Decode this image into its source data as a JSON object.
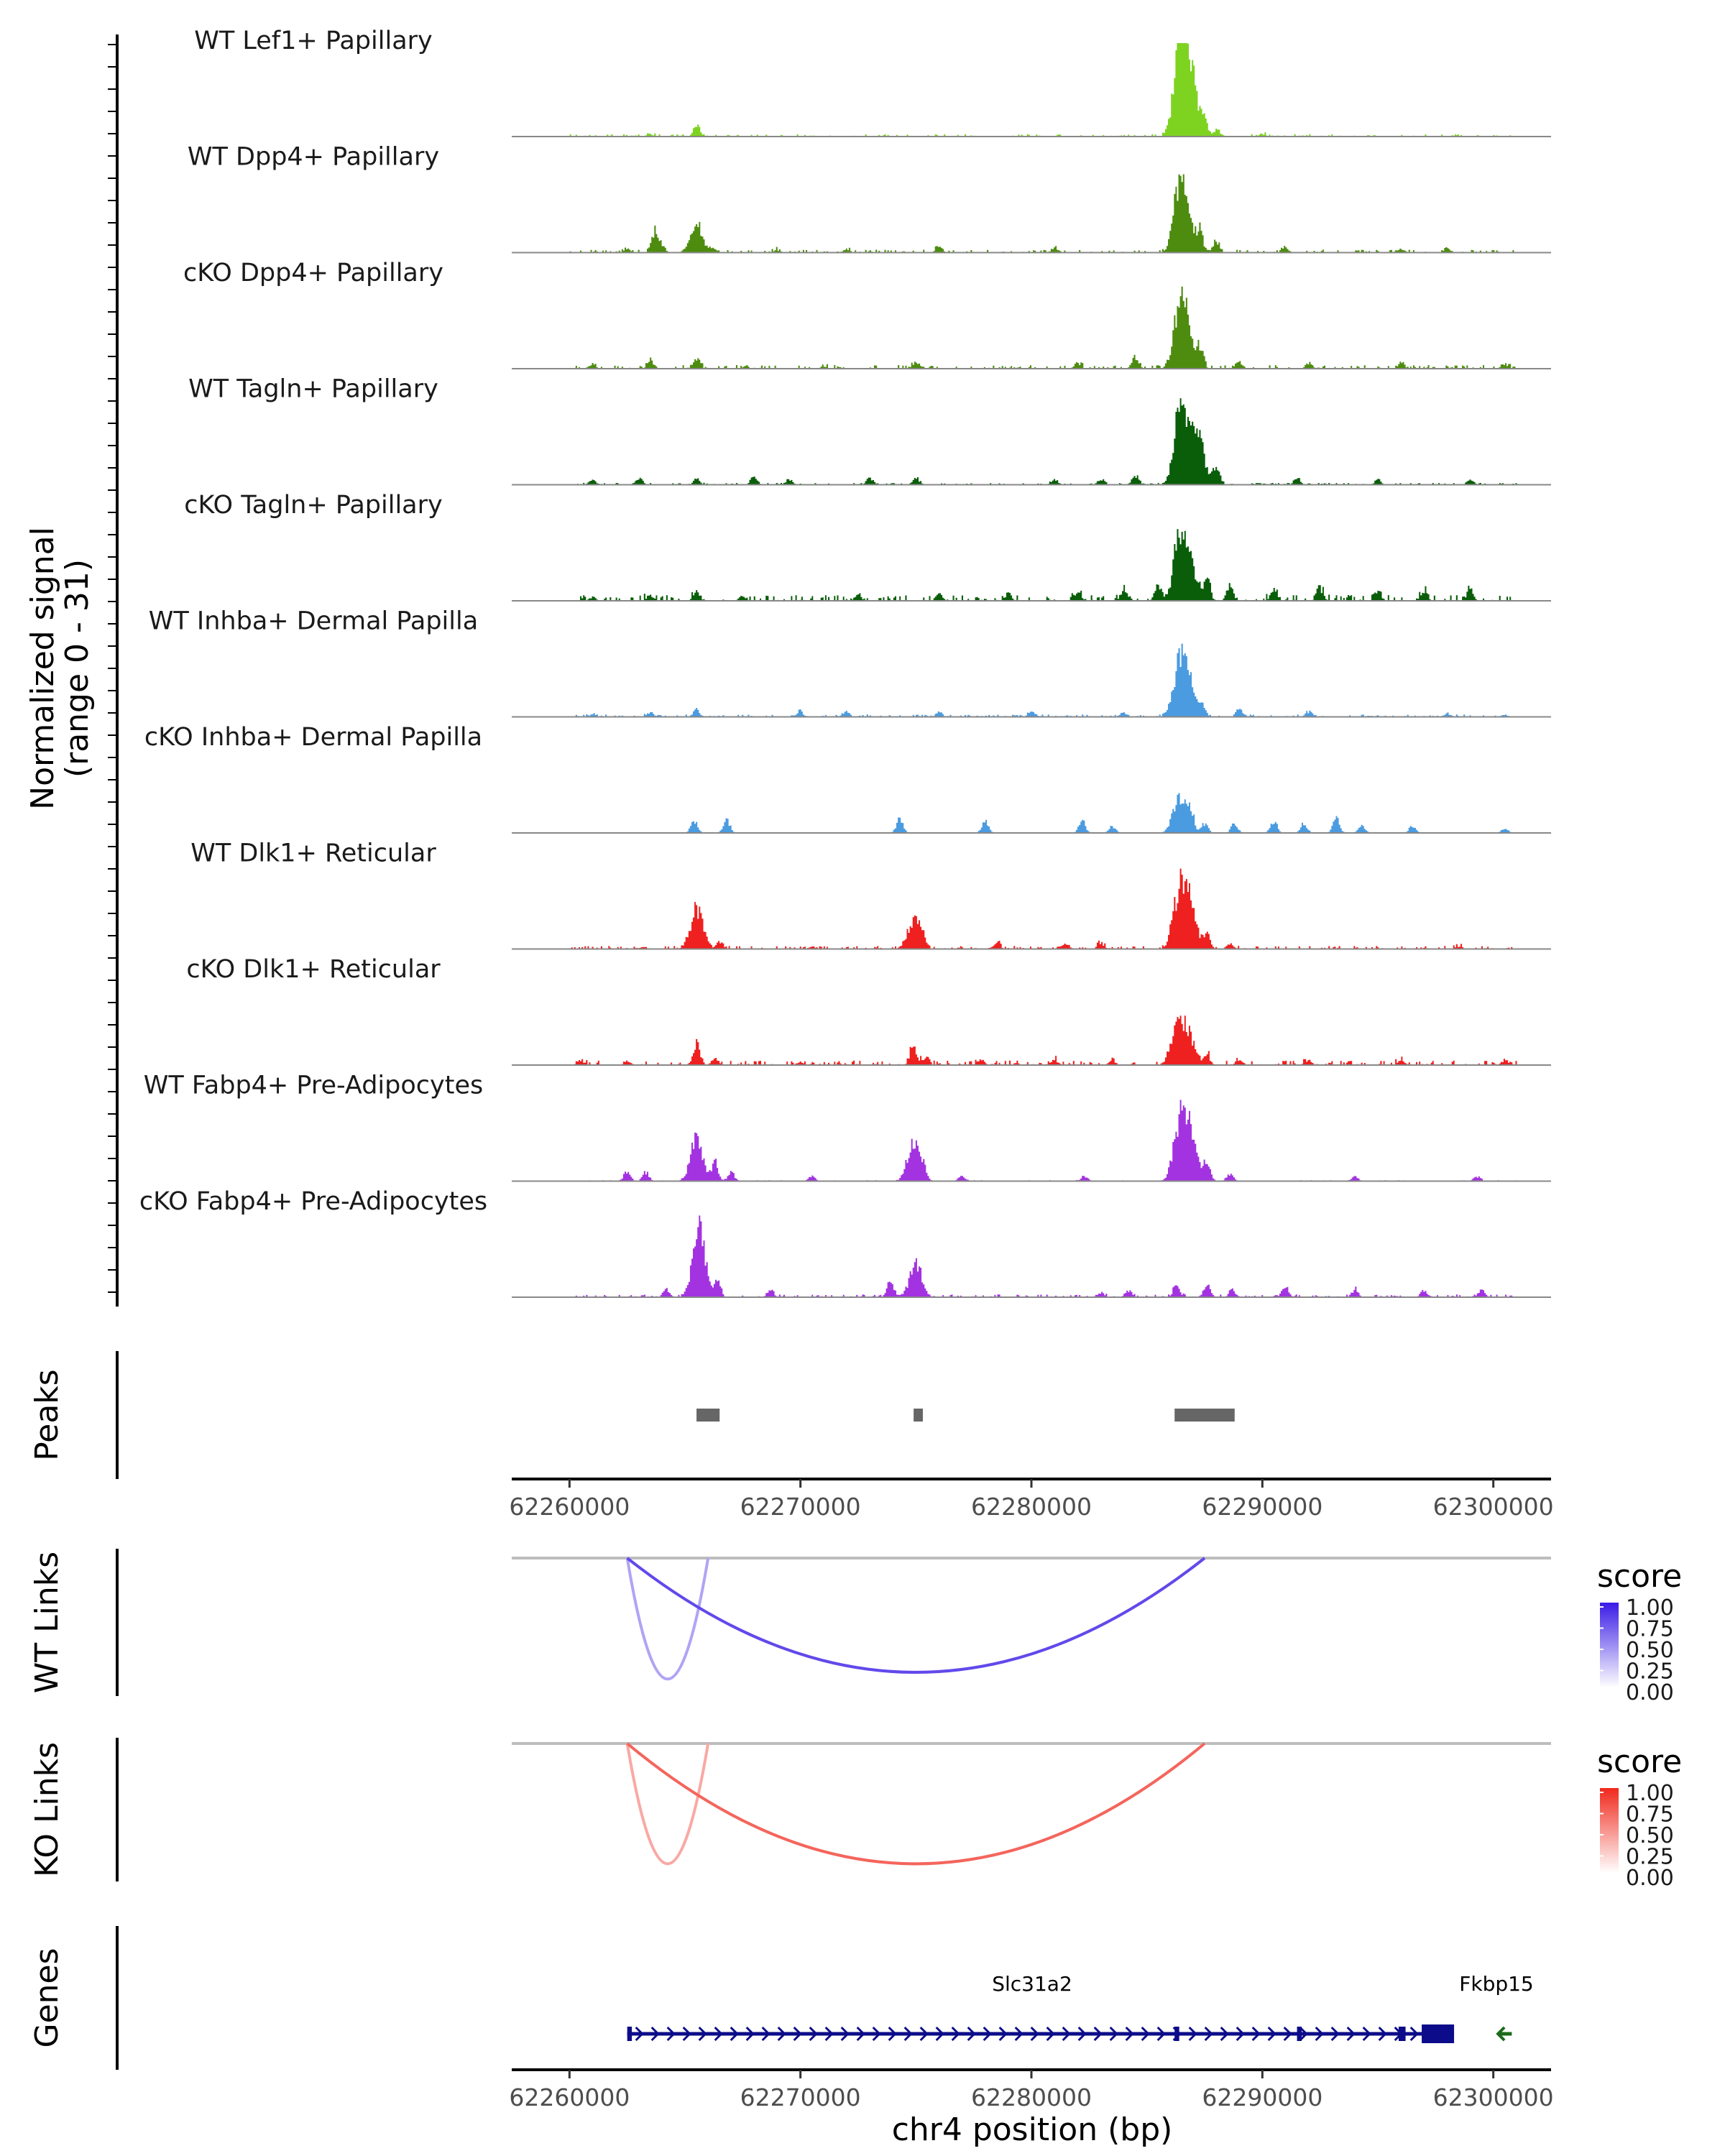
{
  "chart_data": {
    "type": "genome-coverage",
    "region": {
      "chrom": "chr4",
      "start": 62257500,
      "end": 62302500
    },
    "xlabel": "chr4 position (bp)",
    "x_ticks": [
      62260000,
      62270000,
      62280000,
      62290000,
      62300000
    ],
    "x_tick_labels": [
      "62260000",
      "62270000",
      "62280000",
      "62290000",
      "62300000"
    ],
    "coverage_ylabel": [
      "Normalized signal",
      "(range 0 - 31)"
    ],
    "y_range": [
      0,
      31
    ],
    "tracks": [
      {
        "name": "WT Lef1+ Papillary",
        "color": "#7ED321",
        "peaks": [
          [
            62263500,
            1.0
          ],
          [
            62265500,
            4.0
          ],
          [
            62286400,
            31.0
          ],
          [
            62286700,
            22.0
          ],
          [
            62287000,
            14.0
          ],
          [
            62287500,
            6.0
          ],
          [
            62288000,
            3.0
          ],
          [
            62290000,
            1.0
          ]
        ],
        "noise": 0.8
      },
      {
        "name": "WT Dpp4+ Papillary",
        "color": "#4E8C10",
        "peaks": [
          [
            62262500,
            1.5
          ],
          [
            62263700,
            9.0
          ],
          [
            62264000,
            3.0
          ],
          [
            62265500,
            12.0
          ],
          [
            62266200,
            2.0
          ],
          [
            62269000,
            1.0
          ],
          [
            62272000,
            1.5
          ],
          [
            62276000,
            2.5
          ],
          [
            62281000,
            2.0
          ],
          [
            62286400,
            22.0
          ],
          [
            62286700,
            15.0
          ],
          [
            62287300,
            9.0
          ],
          [
            62288000,
            5.0
          ],
          [
            62291000,
            2.0
          ],
          [
            62296000,
            1.5
          ],
          [
            62298000,
            2.0
          ]
        ],
        "noise": 1.0
      },
      {
        "name": "cKO Dpp4+ Papillary",
        "color": "#4E8C10",
        "peaks": [
          [
            62261000,
            2.0
          ],
          [
            62263500,
            3.0
          ],
          [
            62265500,
            4.0
          ],
          [
            62271000,
            1.0
          ],
          [
            62275000,
            2.5
          ],
          [
            62282000,
            2.5
          ],
          [
            62284500,
            4.0
          ],
          [
            62286400,
            22.0
          ],
          [
            62286700,
            15.0
          ],
          [
            62287300,
            8.0
          ],
          [
            62289000,
            3.0
          ],
          [
            62292000,
            2.0
          ],
          [
            62296000,
            2.0
          ],
          [
            62300500,
            2.0
          ]
        ],
        "noise": 1.2
      },
      {
        "name": "WT Tagln+ Papillary",
        "color": "#0A5E0A",
        "peaks": [
          [
            62261000,
            2.0
          ],
          [
            62263000,
            3.0
          ],
          [
            62265500,
            2.0
          ],
          [
            62268000,
            3.0
          ],
          [
            62269500,
            2.0
          ],
          [
            62273000,
            3.0
          ],
          [
            62275000,
            3.0
          ],
          [
            62281000,
            2.5
          ],
          [
            62283000,
            2.0
          ],
          [
            62284500,
            4.0
          ],
          [
            62286400,
            27.0
          ],
          [
            62286900,
            20.0
          ],
          [
            62287300,
            14.0
          ],
          [
            62288000,
            8.0
          ],
          [
            62291500,
            3.0
          ],
          [
            62295000,
            2.0
          ],
          [
            62299000,
            2.0
          ]
        ],
        "noise": 0.6
      },
      {
        "name": "cKO Tagln+ Papillary",
        "color": "#0A5E0A",
        "peaks": [
          [
            62261000,
            1.5
          ],
          [
            62263500,
            2.5
          ],
          [
            62265500,
            4.0
          ],
          [
            62267500,
            2.0
          ],
          [
            62272500,
            2.5
          ],
          [
            62276000,
            3.0
          ],
          [
            62279000,
            3.0
          ],
          [
            62282000,
            4.0
          ],
          [
            62284000,
            5.0
          ],
          [
            62285500,
            7.0
          ],
          [
            62286400,
            23.0
          ],
          [
            62286900,
            16.0
          ],
          [
            62287600,
            9.0
          ],
          [
            62288600,
            6.0
          ],
          [
            62290500,
            5.0
          ],
          [
            62292500,
            5.0
          ],
          [
            62295000,
            4.0
          ],
          [
            62297000,
            4.0
          ],
          [
            62299000,
            4.0
          ]
        ],
        "noise": 2.0
      },
      {
        "name": "WT Inhba+ Dermal Papilla",
        "color": "#4B9BE0",
        "peaks": [
          [
            62261000,
            1.0
          ],
          [
            62263500,
            2.0
          ],
          [
            62265500,
            3.0
          ],
          [
            62270000,
            2.0
          ],
          [
            62272000,
            2.0
          ],
          [
            62276000,
            2.0
          ],
          [
            62280000,
            2.0
          ],
          [
            62284000,
            2.0
          ],
          [
            62286400,
            22.0
          ],
          [
            62286800,
            15.0
          ],
          [
            62287400,
            5.0
          ],
          [
            62289000,
            3.0
          ],
          [
            62292000,
            2.0
          ],
          [
            62298000,
            1.5
          ],
          [
            62300500,
            1.0
          ]
        ],
        "noise": 0.8
      },
      {
        "name": "cKO Inhba+ Dermal Papilla",
        "color": "#4B9BE0",
        "peaks": [
          [
            62265400,
            5.0
          ],
          [
            62266800,
            6.0
          ],
          [
            62274300,
            6.0
          ],
          [
            62278000,
            5.0
          ],
          [
            62282200,
            5.0
          ],
          [
            62283500,
            3.0
          ],
          [
            62286400,
            15.0
          ],
          [
            62286900,
            10.0
          ],
          [
            62287500,
            4.0
          ],
          [
            62288800,
            4.0
          ],
          [
            62290500,
            5.0
          ],
          [
            62291800,
            4.0
          ],
          [
            62293200,
            6.0
          ],
          [
            62294300,
            3.0
          ],
          [
            62296500,
            3.0
          ],
          [
            62300500,
            2.0
          ]
        ],
        "noise": 0.0
      },
      {
        "name": "WT Dlk1+ Reticular",
        "color": "#EE2020",
        "peaks": [
          [
            62263200,
            1.0
          ],
          [
            62265500,
            17.0
          ],
          [
            62266500,
            3.0
          ],
          [
            62270500,
            1.0
          ],
          [
            62274900,
            13.0
          ],
          [
            62275300,
            4.0
          ],
          [
            62278500,
            3.0
          ],
          [
            62281500,
            2.5
          ],
          [
            62283000,
            2.5
          ],
          [
            62286400,
            24.0
          ],
          [
            62286900,
            18.0
          ],
          [
            62287600,
            6.0
          ],
          [
            62288600,
            2.0
          ],
          [
            62298500,
            1.0
          ]
        ],
        "noise": 1.0
      },
      {
        "name": "cKO Dlk1+ Reticular",
        "color": "#EE2020",
        "peaks": [
          [
            62260500,
            2.0
          ],
          [
            62262500,
            1.5
          ],
          [
            62265500,
            10.0
          ],
          [
            62266300,
            3.0
          ],
          [
            62270000,
            1.5
          ],
          [
            62274900,
            8.0
          ],
          [
            62275400,
            3.0
          ],
          [
            62277800,
            2.5
          ],
          [
            62281000,
            2.0
          ],
          [
            62283500,
            2.0
          ],
          [
            62286300,
            17.0
          ],
          [
            62286800,
            12.0
          ],
          [
            62287600,
            4.0
          ],
          [
            62289000,
            2.5
          ],
          [
            62292000,
            2.0
          ],
          [
            62296000,
            2.0
          ],
          [
            62300500,
            2.0
          ]
        ],
        "noise": 1.5
      },
      {
        "name": "WT Fabp4+ Pre-Adipocytes",
        "color": "#A333E0",
        "peaks": [
          [
            62262500,
            4.0
          ],
          [
            62263300,
            4.0
          ],
          [
            62265500,
            17.0
          ],
          [
            62266300,
            8.0
          ],
          [
            62267000,
            4.0
          ],
          [
            62270500,
            2.0
          ],
          [
            62274900,
            16.0
          ],
          [
            62275300,
            5.0
          ],
          [
            62277000,
            2.0
          ],
          [
            62282300,
            2.0
          ],
          [
            62286400,
            25.0
          ],
          [
            62286900,
            19.0
          ],
          [
            62287600,
            8.0
          ],
          [
            62288600,
            3.0
          ],
          [
            62294000,
            2.0
          ],
          [
            62299300,
            2.0
          ]
        ],
        "noise": 0.3
      },
      {
        "name": "cKO Fabp4+ Pre-Adipocytes",
        "color": "#A333E0",
        "peaks": [
          [
            62264200,
            3.0
          ],
          [
            62265600,
            30.0
          ],
          [
            62266400,
            7.0
          ],
          [
            62268700,
            2.5
          ],
          [
            62273900,
            6.0
          ],
          [
            62275000,
            14.0
          ],
          [
            62283000,
            2.0
          ],
          [
            62284200,
            3.0
          ],
          [
            62286300,
            5.0
          ],
          [
            62287600,
            6.0
          ],
          [
            62288700,
            3.0
          ],
          [
            62291000,
            4.0
          ],
          [
            62294000,
            3.0
          ],
          [
            62297000,
            3.0
          ],
          [
            62299500,
            3.0
          ]
        ],
        "noise": 0.9
      }
    ],
    "peaks_track": {
      "label": "Peaks",
      "regions": [
        [
          62265500,
          62266500
        ],
        [
          62274900,
          62275300
        ],
        [
          62286200,
          62288800
        ]
      ],
      "color": "#666666"
    },
    "link_tracks": [
      {
        "label": "WT Links",
        "color_scale": [
          "#FFFFFF",
          "#3A1CE6"
        ],
        "legend_title": "score",
        "legend_ticks": [
          "1.00",
          "0.75",
          "0.50",
          "0.25",
          "0.00"
        ],
        "links": [
          {
            "start": 62262500,
            "end": 62266000,
            "score": 0.25,
            "depth": 0.9
          },
          {
            "start": 62262500,
            "end": 62287500,
            "score": 0.75,
            "depth": 0.85
          }
        ]
      },
      {
        "label": "KO Links",
        "color_scale": [
          "#FFFFFF",
          "#F0291C"
        ],
        "legend_title": "score",
        "legend_ticks": [
          "1.00",
          "0.75",
          "0.50",
          "0.25",
          "0.00"
        ],
        "links": [
          {
            "start": 62262500,
            "end": 62266000,
            "score": 0.25,
            "depth": 0.9
          },
          {
            "start": 62262500,
            "end": 62287500,
            "score": 0.65,
            "depth": 0.9
          }
        ]
      }
    ],
    "genes_track": {
      "label": "Genes",
      "genes": [
        {
          "name": "Slc31a2",
          "start": 62262500,
          "end": 62298300,
          "strand": "+",
          "color": "#0C0C8A",
          "exons": [
            [
              62262500,
              62262700
            ],
            [
              62286200,
              62286400
            ],
            [
              62291500,
              62291700
            ],
            [
              62295900,
              62296200
            ],
            [
              62296900,
              62298300
            ]
          ]
        },
        {
          "name": "Fkbp15",
          "start": 62300200,
          "end": 62300800,
          "strand": "-",
          "color": "#1B6B1B",
          "exons": []
        }
      ]
    }
  }
}
